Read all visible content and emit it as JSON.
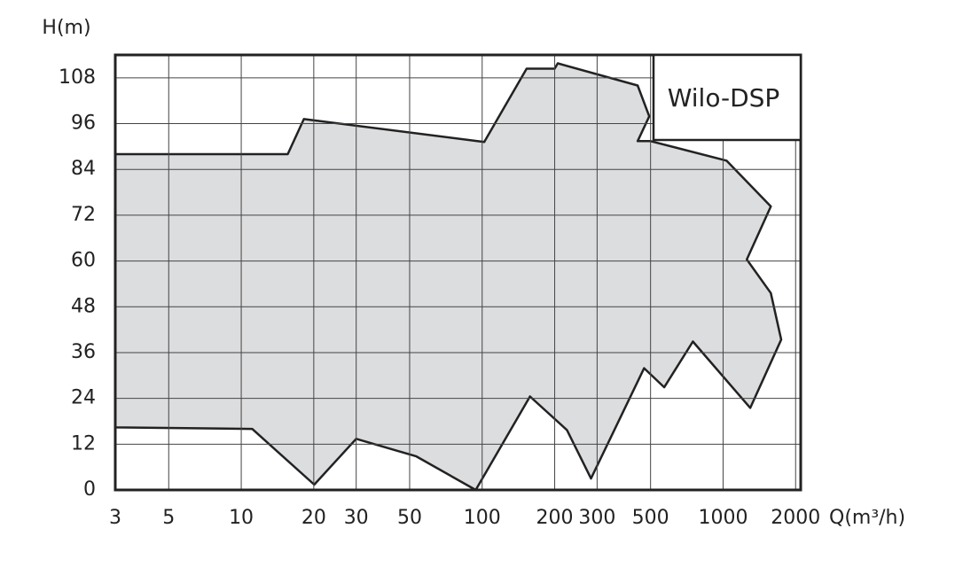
{
  "chart_data": {
    "type": "area",
    "y_label": "H(m)",
    "x_label": "Q(m³/h)",
    "annotation": "Wilo-DSP",
    "x_log": true,
    "grid": true,
    "color": "#dcdddf",
    "line_color": "#222222",
    "xlim": [
      3,
      2100
    ],
    "xticks": [
      3,
      5,
      10,
      20,
      30,
      50,
      100,
      200,
      300,
      500,
      1000,
      2000
    ],
    "ylim": [
      0,
      114
    ],
    "yticks": [
      0,
      12,
      24,
      36,
      48,
      60,
      72,
      84,
      96,
      108
    ],
    "x": [
      3,
      15.6,
      18.2,
      102,
      153,
      200,
      206,
      442,
      494,
      442,
      500,
      1033,
      1578,
      1254,
      1578,
      1743,
      1297,
      749,
      570,
      470,
      283,
      225,
      158,
      94,
      53.3,
      30,
      20.1,
      11.1,
      3
    ],
    "values": [
      88,
      88,
      97.2,
      91.2,
      110.4,
      110.4,
      111.8,
      106,
      97.9,
      91.4,
      91.4,
      86.3,
      74.3,
      60.4,
      51.6,
      39.4,
      21.5,
      38.9,
      26.9,
      31.9,
      3,
      15.7,
      24.5,
      0,
      8.8,
      13.4,
      1.4,
      16,
      16.4
    ]
  }
}
